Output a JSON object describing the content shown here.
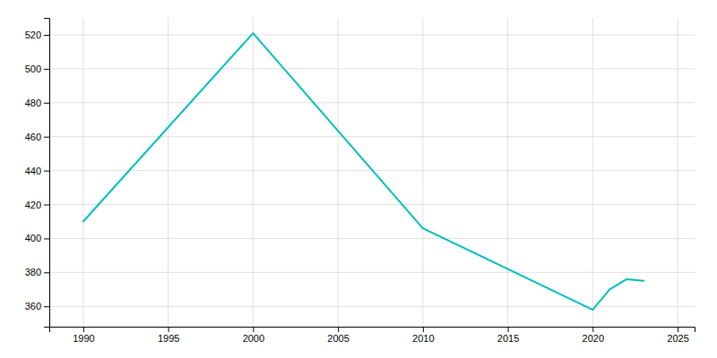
{
  "chart_data": {
    "type": "line",
    "x": [
      1990,
      2000,
      2010,
      2020,
      2021,
      2022,
      2023
    ],
    "values": [
      410,
      521,
      406,
      358,
      370,
      376,
      375
    ],
    "color": "#00BEBE",
    "xlim": [
      1988,
      2026
    ],
    "ylim": [
      348,
      530
    ],
    "xticks": [
      1990,
      1995,
      2000,
      2005,
      2010,
      2015,
      2020,
      2025
    ],
    "yticks": [
      360,
      380,
      400,
      420,
      440,
      460,
      480,
      500,
      520
    ],
    "grid": true
  }
}
